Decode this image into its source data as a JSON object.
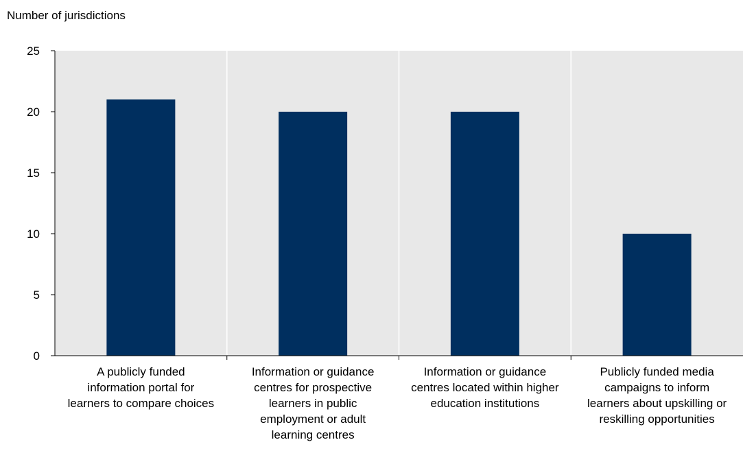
{
  "chart_data": {
    "type": "bar",
    "ylabel": "Number of jurisdictions",
    "xlabel": "",
    "ylim": [
      0,
      25
    ],
    "yticks": [
      0,
      5,
      10,
      15,
      20,
      25
    ],
    "grid": "vertical-separators",
    "categories": [
      "A publicly funded information portal for learners to compare choices",
      "Information or guidance centres for prospective learners in public employment or adult learning centres",
      "Information or guidance centres located within higher education institutions",
      "Publicly funded media campaigns to inform learners about upskilling or reskilling opportunities"
    ],
    "category_lines": [
      [
        "A publicly funded",
        "information portal for",
        "learners to compare choices"
      ],
      [
        "Information or guidance",
        "centres for prospective",
        "learners in public",
        "employment or adult",
        "learning centres"
      ],
      [
        "Information or guidance",
        "centres located within higher",
        "education institutions"
      ],
      [
        "Publicly funded media",
        "campaigns to inform",
        "learners about upskilling or",
        "reskilling opportunities"
      ]
    ],
    "values": [
      21,
      20,
      20,
      10
    ],
    "colors": {
      "bar": "#002f5f",
      "plot_background": "#e8e8e8",
      "separator": "#ffffff",
      "axis": "#000000"
    }
  }
}
